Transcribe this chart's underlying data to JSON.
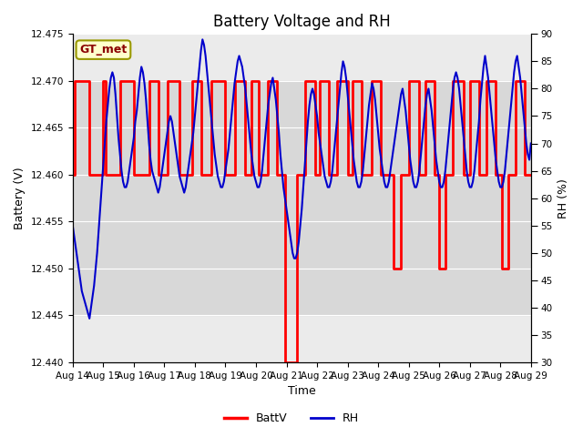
{
  "title": "Battery Voltage and RH",
  "xlabel": "Time",
  "ylabel_left": "Battery (V)",
  "ylabel_right": "RH (%)",
  "legend_label": "GT_met",
  "ylim_left": [
    12.44,
    12.475
  ],
  "ylim_right": [
    30,
    90
  ],
  "yticks_left": [
    12.44,
    12.445,
    12.45,
    12.455,
    12.46,
    12.465,
    12.47,
    12.475
  ],
  "yticks_right": [
    30,
    35,
    40,
    45,
    50,
    55,
    60,
    65,
    70,
    75,
    80,
    85,
    90
  ],
  "xtick_labels": [
    "Aug 14",
    "Aug 15",
    "Aug 16",
    "Aug 17",
    "Aug 18",
    "Aug 19",
    "Aug 20",
    "Aug 21",
    "Aug 22",
    "Aug 23",
    "Aug 24",
    "Aug 25",
    "Aug 26",
    "Aug 27",
    "Aug 28",
    "Aug 29"
  ],
  "background_color": "#ffffff",
  "plot_bg_color": "#ebebeb",
  "band_lo": 12.445,
  "band_hi": 12.47,
  "band_color": "#d8d8d8",
  "title_fontsize": 12,
  "axis_label_fontsize": 9,
  "tick_fontsize": 7.5,
  "legend_fontsize": 9,
  "batt_color": "#ff0000",
  "rh_color": "#0000cc",
  "batt_linewidth": 2.0,
  "rh_linewidth": 1.5,
  "n_days": 15,
  "batt_data": [
    [
      0.0,
      12.46
    ],
    [
      0.08,
      12.46
    ],
    [
      0.08,
      12.47
    ],
    [
      0.55,
      12.47
    ],
    [
      0.55,
      12.46
    ],
    [
      1.0,
      12.46
    ],
    [
      1.0,
      12.47
    ],
    [
      1.08,
      12.47
    ],
    [
      1.08,
      12.46
    ],
    [
      1.55,
      12.46
    ],
    [
      1.55,
      12.47
    ],
    [
      2.0,
      12.47
    ],
    [
      2.0,
      12.46
    ],
    [
      2.5,
      12.46
    ],
    [
      2.5,
      12.47
    ],
    [
      2.8,
      12.47
    ],
    [
      2.8,
      12.46
    ],
    [
      3.1,
      12.46
    ],
    [
      3.1,
      12.47
    ],
    [
      3.5,
      12.47
    ],
    [
      3.5,
      12.46
    ],
    [
      3.9,
      12.46
    ],
    [
      3.9,
      12.47
    ],
    [
      4.2,
      12.47
    ],
    [
      4.2,
      12.46
    ],
    [
      4.55,
      12.46
    ],
    [
      4.55,
      12.47
    ],
    [
      5.0,
      12.47
    ],
    [
      5.0,
      12.46
    ],
    [
      5.3,
      12.46
    ],
    [
      5.3,
      12.47
    ],
    [
      5.65,
      12.47
    ],
    [
      5.65,
      12.46
    ],
    [
      5.85,
      12.46
    ],
    [
      5.85,
      12.47
    ],
    [
      6.1,
      12.47
    ],
    [
      6.1,
      12.46
    ],
    [
      6.4,
      12.46
    ],
    [
      6.4,
      12.47
    ],
    [
      6.7,
      12.47
    ],
    [
      6.7,
      12.46
    ],
    [
      6.95,
      12.46
    ],
    [
      6.95,
      12.44
    ],
    [
      7.35,
      12.44
    ],
    [
      7.35,
      12.46
    ],
    [
      7.6,
      12.46
    ],
    [
      7.6,
      12.47
    ],
    [
      7.95,
      12.47
    ],
    [
      7.95,
      12.46
    ],
    [
      8.1,
      12.46
    ],
    [
      8.1,
      12.47
    ],
    [
      8.4,
      12.47
    ],
    [
      8.4,
      12.46
    ],
    [
      8.65,
      12.46
    ],
    [
      8.65,
      12.47
    ],
    [
      9.0,
      12.47
    ],
    [
      9.0,
      12.46
    ],
    [
      9.15,
      12.46
    ],
    [
      9.15,
      12.47
    ],
    [
      9.45,
      12.47
    ],
    [
      9.45,
      12.46
    ],
    [
      9.8,
      12.46
    ],
    [
      9.8,
      12.47
    ],
    [
      10.1,
      12.47
    ],
    [
      10.1,
      12.46
    ],
    [
      10.5,
      12.46
    ],
    [
      10.5,
      12.45
    ],
    [
      10.75,
      12.45
    ],
    [
      10.75,
      12.46
    ],
    [
      11.0,
      12.46
    ],
    [
      11.0,
      12.47
    ],
    [
      11.35,
      12.47
    ],
    [
      11.35,
      12.46
    ],
    [
      11.55,
      12.46
    ],
    [
      11.55,
      12.47
    ],
    [
      11.85,
      12.47
    ],
    [
      11.85,
      12.46
    ],
    [
      12.0,
      12.46
    ],
    [
      12.0,
      12.45
    ],
    [
      12.2,
      12.45
    ],
    [
      12.2,
      12.46
    ],
    [
      12.45,
      12.46
    ],
    [
      12.45,
      12.47
    ],
    [
      12.8,
      12.47
    ],
    [
      12.8,
      12.46
    ],
    [
      13.0,
      12.46
    ],
    [
      13.0,
      12.47
    ],
    [
      13.3,
      12.47
    ],
    [
      13.3,
      12.46
    ],
    [
      13.55,
      12.46
    ],
    [
      13.55,
      12.47
    ],
    [
      13.85,
      12.47
    ],
    [
      13.85,
      12.46
    ],
    [
      14.05,
      12.46
    ],
    [
      14.05,
      12.45
    ],
    [
      14.25,
      12.45
    ],
    [
      14.25,
      12.46
    ],
    [
      14.5,
      12.46
    ],
    [
      14.5,
      12.47
    ],
    [
      14.8,
      12.47
    ],
    [
      14.8,
      12.46
    ],
    [
      15.0,
      12.46
    ]
  ],
  "rh_data": [
    [
      0.0,
      55
    ],
    [
      0.05,
      53
    ],
    [
      0.1,
      51
    ],
    [
      0.15,
      49
    ],
    [
      0.2,
      47
    ],
    [
      0.25,
      45
    ],
    [
      0.3,
      43
    ],
    [
      0.35,
      42
    ],
    [
      0.4,
      41
    ],
    [
      0.45,
      40
    ],
    [
      0.5,
      39
    ],
    [
      0.55,
      38
    ],
    [
      0.6,
      40
    ],
    [
      0.65,
      42
    ],
    [
      0.7,
      44
    ],
    [
      0.75,
      47
    ],
    [
      0.8,
      50
    ],
    [
      0.85,
      54
    ],
    [
      0.9,
      58
    ],
    [
      0.95,
      62
    ],
    [
      1.0,
      66
    ],
    [
      1.05,
      70
    ],
    [
      1.1,
      74
    ],
    [
      1.15,
      77
    ],
    [
      1.2,
      80
    ],
    [
      1.25,
      82
    ],
    [
      1.3,
      83
    ],
    [
      1.35,
      82
    ],
    [
      1.4,
      79
    ],
    [
      1.45,
      75
    ],
    [
      1.5,
      71
    ],
    [
      1.55,
      68
    ],
    [
      1.6,
      65
    ],
    [
      1.65,
      63
    ],
    [
      1.7,
      62
    ],
    [
      1.75,
      62
    ],
    [
      1.8,
      63
    ],
    [
      1.85,
      65
    ],
    [
      1.9,
      67
    ],
    [
      1.95,
      69
    ],
    [
      2.0,
      71
    ],
    [
      2.05,
      74
    ],
    [
      2.1,
      76
    ],
    [
      2.15,
      79
    ],
    [
      2.2,
      82
    ],
    [
      2.25,
      84
    ],
    [
      2.3,
      83
    ],
    [
      2.35,
      81
    ],
    [
      2.4,
      78
    ],
    [
      2.45,
      74
    ],
    [
      2.5,
      70
    ],
    [
      2.55,
      67
    ],
    [
      2.6,
      65
    ],
    [
      2.65,
      64
    ],
    [
      2.7,
      63
    ],
    [
      2.75,
      62
    ],
    [
      2.8,
      61
    ],
    [
      2.85,
      62
    ],
    [
      2.9,
      64
    ],
    [
      2.95,
      66
    ],
    [
      3.0,
      68
    ],
    [
      3.05,
      70
    ],
    [
      3.1,
      72
    ],
    [
      3.15,
      74
    ],
    [
      3.2,
      75
    ],
    [
      3.25,
      74
    ],
    [
      3.3,
      72
    ],
    [
      3.35,
      70
    ],
    [
      3.4,
      68
    ],
    [
      3.45,
      66
    ],
    [
      3.5,
      64
    ],
    [
      3.55,
      63
    ],
    [
      3.6,
      62
    ],
    [
      3.65,
      61
    ],
    [
      3.7,
      62
    ],
    [
      3.75,
      64
    ],
    [
      3.8,
      66
    ],
    [
      3.85,
      68
    ],
    [
      3.9,
      70
    ],
    [
      3.95,
      72
    ],
    [
      4.0,
      75
    ],
    [
      4.05,
      78
    ],
    [
      4.1,
      81
    ],
    [
      4.15,
      84
    ],
    [
      4.2,
      87
    ],
    [
      4.25,
      89
    ],
    [
      4.3,
      88
    ],
    [
      4.35,
      86
    ],
    [
      4.4,
      83
    ],
    [
      4.45,
      80
    ],
    [
      4.5,
      77
    ],
    [
      4.55,
      74
    ],
    [
      4.6,
      71
    ],
    [
      4.65,
      68
    ],
    [
      4.7,
      66
    ],
    [
      4.75,
      64
    ],
    [
      4.8,
      63
    ],
    [
      4.85,
      62
    ],
    [
      4.9,
      62
    ],
    [
      4.95,
      63
    ],
    [
      5.0,
      65
    ],
    [
      5.05,
      67
    ],
    [
      5.1,
      69
    ],
    [
      5.15,
      72
    ],
    [
      5.2,
      75
    ],
    [
      5.25,
      78
    ],
    [
      5.3,
      81
    ],
    [
      5.35,
      83
    ],
    [
      5.4,
      85
    ],
    [
      5.45,
      86
    ],
    [
      5.5,
      85
    ],
    [
      5.55,
      84
    ],
    [
      5.6,
      82
    ],
    [
      5.65,
      80
    ],
    [
      5.7,
      77
    ],
    [
      5.75,
      74
    ],
    [
      5.8,
      71
    ],
    [
      5.85,
      68
    ],
    [
      5.9,
      66
    ],
    [
      5.95,
      64
    ],
    [
      6.0,
      63
    ],
    [
      6.05,
      62
    ],
    [
      6.1,
      62
    ],
    [
      6.15,
      63
    ],
    [
      6.2,
      65
    ],
    [
      6.25,
      68
    ],
    [
      6.3,
      71
    ],
    [
      6.35,
      74
    ],
    [
      6.4,
      77
    ],
    [
      6.45,
      79
    ],
    [
      6.5,
      81
    ],
    [
      6.55,
      82
    ],
    [
      6.6,
      80
    ],
    [
      6.65,
      78
    ],
    [
      6.7,
      75
    ],
    [
      6.75,
      72
    ],
    [
      6.8,
      68
    ],
    [
      6.85,
      65
    ],
    [
      6.9,
      62
    ],
    [
      6.95,
      60
    ],
    [
      7.0,
      58
    ],
    [
      7.05,
      56
    ],
    [
      7.1,
      54
    ],
    [
      7.15,
      52
    ],
    [
      7.2,
      50
    ],
    [
      7.25,
      49
    ],
    [
      7.3,
      49
    ],
    [
      7.35,
      50
    ],
    [
      7.4,
      52
    ],
    [
      7.45,
      55
    ],
    [
      7.5,
      58
    ],
    [
      7.55,
      62
    ],
    [
      7.6,
      66
    ],
    [
      7.65,
      70
    ],
    [
      7.7,
      74
    ],
    [
      7.75,
      77
    ],
    [
      7.8,
      79
    ],
    [
      7.85,
      80
    ],
    [
      7.9,
      79
    ],
    [
      7.95,
      77
    ],
    [
      8.0,
      75
    ],
    [
      8.05,
      72
    ],
    [
      8.1,
      70
    ],
    [
      8.15,
      68
    ],
    [
      8.2,
      66
    ],
    [
      8.25,
      64
    ],
    [
      8.3,
      63
    ],
    [
      8.35,
      62
    ],
    [
      8.4,
      62
    ],
    [
      8.45,
      63
    ],
    [
      8.5,
      65
    ],
    [
      8.55,
      68
    ],
    [
      8.6,
      71
    ],
    [
      8.65,
      74
    ],
    [
      8.7,
      77
    ],
    [
      8.75,
      80
    ],
    [
      8.8,
      83
    ],
    [
      8.85,
      85
    ],
    [
      8.9,
      84
    ],
    [
      8.95,
      82
    ],
    [
      9.0,
      79
    ],
    [
      9.05,
      76
    ],
    [
      9.1,
      73
    ],
    [
      9.15,
      70
    ],
    [
      9.2,
      67
    ],
    [
      9.25,
      65
    ],
    [
      9.3,
      63
    ],
    [
      9.35,
      62
    ],
    [
      9.4,
      62
    ],
    [
      9.45,
      63
    ],
    [
      9.5,
      65
    ],
    [
      9.55,
      68
    ],
    [
      9.6,
      71
    ],
    [
      9.65,
      74
    ],
    [
      9.7,
      77
    ],
    [
      9.75,
      79
    ],
    [
      9.8,
      81
    ],
    [
      9.85,
      80
    ],
    [
      9.9,
      78
    ],
    [
      9.95,
      75
    ],
    [
      10.0,
      72
    ],
    [
      10.05,
      69
    ],
    [
      10.1,
      67
    ],
    [
      10.15,
      65
    ],
    [
      10.2,
      63
    ],
    [
      10.25,
      62
    ],
    [
      10.3,
      62
    ],
    [
      10.35,
      63
    ],
    [
      10.4,
      65
    ],
    [
      10.45,
      67
    ],
    [
      10.5,
      69
    ],
    [
      10.55,
      71
    ],
    [
      10.6,
      73
    ],
    [
      10.65,
      75
    ],
    [
      10.7,
      77
    ],
    [
      10.75,
      79
    ],
    [
      10.8,
      80
    ],
    [
      10.85,
      78
    ],
    [
      10.9,
      76
    ],
    [
      10.95,
      73
    ],
    [
      11.0,
      70
    ],
    [
      11.05,
      67
    ],
    [
      11.1,
      65
    ],
    [
      11.15,
      63
    ],
    [
      11.2,
      62
    ],
    [
      11.25,
      62
    ],
    [
      11.3,
      63
    ],
    [
      11.35,
      65
    ],
    [
      11.4,
      68
    ],
    [
      11.45,
      71
    ],
    [
      11.5,
      74
    ],
    [
      11.55,
      77
    ],
    [
      11.6,
      79
    ],
    [
      11.65,
      80
    ],
    [
      11.7,
      78
    ],
    [
      11.75,
      76
    ],
    [
      11.8,
      73
    ],
    [
      11.85,
      70
    ],
    [
      11.9,
      67
    ],
    [
      11.95,
      65
    ],
    [
      12.0,
      63
    ],
    [
      12.05,
      62
    ],
    [
      12.1,
      62
    ],
    [
      12.15,
      63
    ],
    [
      12.2,
      65
    ],
    [
      12.25,
      68
    ],
    [
      12.3,
      71
    ],
    [
      12.35,
      74
    ],
    [
      12.4,
      77
    ],
    [
      12.45,
      80
    ],
    [
      12.5,
      82
    ],
    [
      12.55,
      83
    ],
    [
      12.6,
      82
    ],
    [
      12.65,
      80
    ],
    [
      12.7,
      77
    ],
    [
      12.75,
      74
    ],
    [
      12.8,
      71
    ],
    [
      12.85,
      68
    ],
    [
      12.9,
      65
    ],
    [
      12.95,
      63
    ],
    [
      13.0,
      62
    ],
    [
      13.05,
      62
    ],
    [
      13.1,
      63
    ],
    [
      13.15,
      65
    ],
    [
      13.2,
      68
    ],
    [
      13.25,
      71
    ],
    [
      13.3,
      74
    ],
    [
      13.35,
      78
    ],
    [
      13.4,
      81
    ],
    [
      13.45,
      84
    ],
    [
      13.5,
      86
    ],
    [
      13.55,
      84
    ],
    [
      13.6,
      82
    ],
    [
      13.65,
      79
    ],
    [
      13.7,
      76
    ],
    [
      13.75,
      73
    ],
    [
      13.8,
      70
    ],
    [
      13.85,
      67
    ],
    [
      13.9,
      65
    ],
    [
      13.95,
      63
    ],
    [
      14.0,
      62
    ],
    [
      14.05,
      62
    ],
    [
      14.1,
      63
    ],
    [
      14.15,
      65
    ],
    [
      14.2,
      68
    ],
    [
      14.25,
      71
    ],
    [
      14.3,
      74
    ],
    [
      14.35,
      77
    ],
    [
      14.4,
      80
    ],
    [
      14.45,
      83
    ],
    [
      14.5,
      85
    ],
    [
      14.55,
      86
    ],
    [
      14.6,
      84
    ],
    [
      14.65,
      82
    ],
    [
      14.7,
      79
    ],
    [
      14.75,
      76
    ],
    [
      14.8,
      73
    ],
    [
      14.85,
      70
    ],
    [
      14.9,
      68
    ],
    [
      14.95,
      67
    ],
    [
      15.0,
      70
    ]
  ]
}
